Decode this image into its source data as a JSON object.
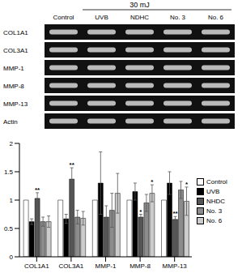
{
  "gel": {
    "dose": "30 mJ",
    "lanes": [
      "Control",
      "UVB",
      "NDHC",
      "No. 3",
      "No. 6"
    ],
    "genes": [
      "COL1A1",
      "COL3A1",
      "MMP-1",
      "MMP-8",
      "MMP-13",
      "Actin"
    ]
  },
  "chart_data": {
    "type": "bar",
    "categories": [
      "COL1A1",
      "COL3A1",
      "MMP-1",
      "MMP-8",
      "MMP-13"
    ],
    "ylim": [
      0,
      2
    ],
    "yticks": [
      0,
      0.5,
      1,
      1.5,
      2
    ],
    "grid": false,
    "legend": "right",
    "series": [
      {
        "name": "Control",
        "color": "#ffffff",
        "values": [
          1,
          1,
          1,
          1,
          1
        ]
      },
      {
        "name": "UVB",
        "color": "#000000",
        "values": [
          0.62,
          0.67,
          1.3,
          1.15,
          1.3
        ],
        "errors": [
          0.05,
          0.08,
          0.55,
          0.15,
          0.2
        ]
      },
      {
        "name": "NHDC",
        "color": "#555555",
        "values": [
          1.03,
          1.37,
          0.7,
          0.7,
          0.66
        ],
        "errors": [
          0.1,
          0.2,
          0.2,
          0.05,
          0.05
        ],
        "significance": [
          "**",
          "**",
          null,
          "*",
          "**"
        ]
      },
      {
        "name": "No. 3",
        "color": "#8c8c8c",
        "values": [
          0.62,
          0.7,
          0.82,
          0.95,
          1.18
        ],
        "errors": [
          0.08,
          0.12,
          0.3,
          0.15,
          0.15
        ]
      },
      {
        "name": "No. 6",
        "color": "#cccccc",
        "values": [
          0.62,
          0.68,
          1.12,
          1.12,
          0.98
        ],
        "errors": [
          0.1,
          0.12,
          0.35,
          0.15,
          0.25
        ],
        "significance": [
          null,
          null,
          null,
          "*",
          "*"
        ]
      }
    ]
  }
}
